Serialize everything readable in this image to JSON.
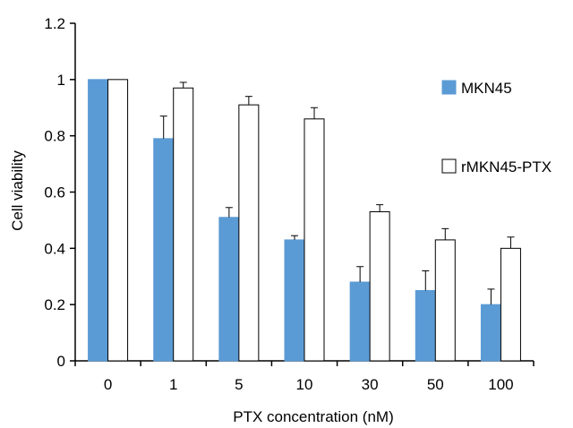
{
  "chart_data": {
    "type": "bar",
    "title": "",
    "xlabel": "PTX concentration (nM)",
    "ylabel": "Cell viability",
    "ylim": [
      0,
      1.2
    ],
    "yticks": [
      "0",
      "0.2",
      "0.4",
      "0.6",
      "0.8",
      "1",
      "1.2"
    ],
    "categories": [
      "0",
      "1",
      "5",
      "10",
      "30",
      "50",
      "100"
    ],
    "series": [
      {
        "name": "MKN45",
        "color": "#5b9bd5",
        "values": [
          1.0,
          0.79,
          0.51,
          0.43,
          0.28,
          0.25,
          0.2
        ],
        "errors": [
          0.0,
          0.08,
          0.035,
          0.015,
          0.055,
          0.07,
          0.055
        ]
      },
      {
        "name": "rMKN45-PTX",
        "color": "#ffffff",
        "values": [
          1.0,
          0.97,
          0.91,
          0.86,
          0.53,
          0.43,
          0.4
        ],
        "errors": [
          0.0,
          0.02,
          0.03,
          0.04,
          0.025,
          0.04,
          0.04
        ]
      }
    ],
    "legend_position": "right",
    "grid": false
  }
}
